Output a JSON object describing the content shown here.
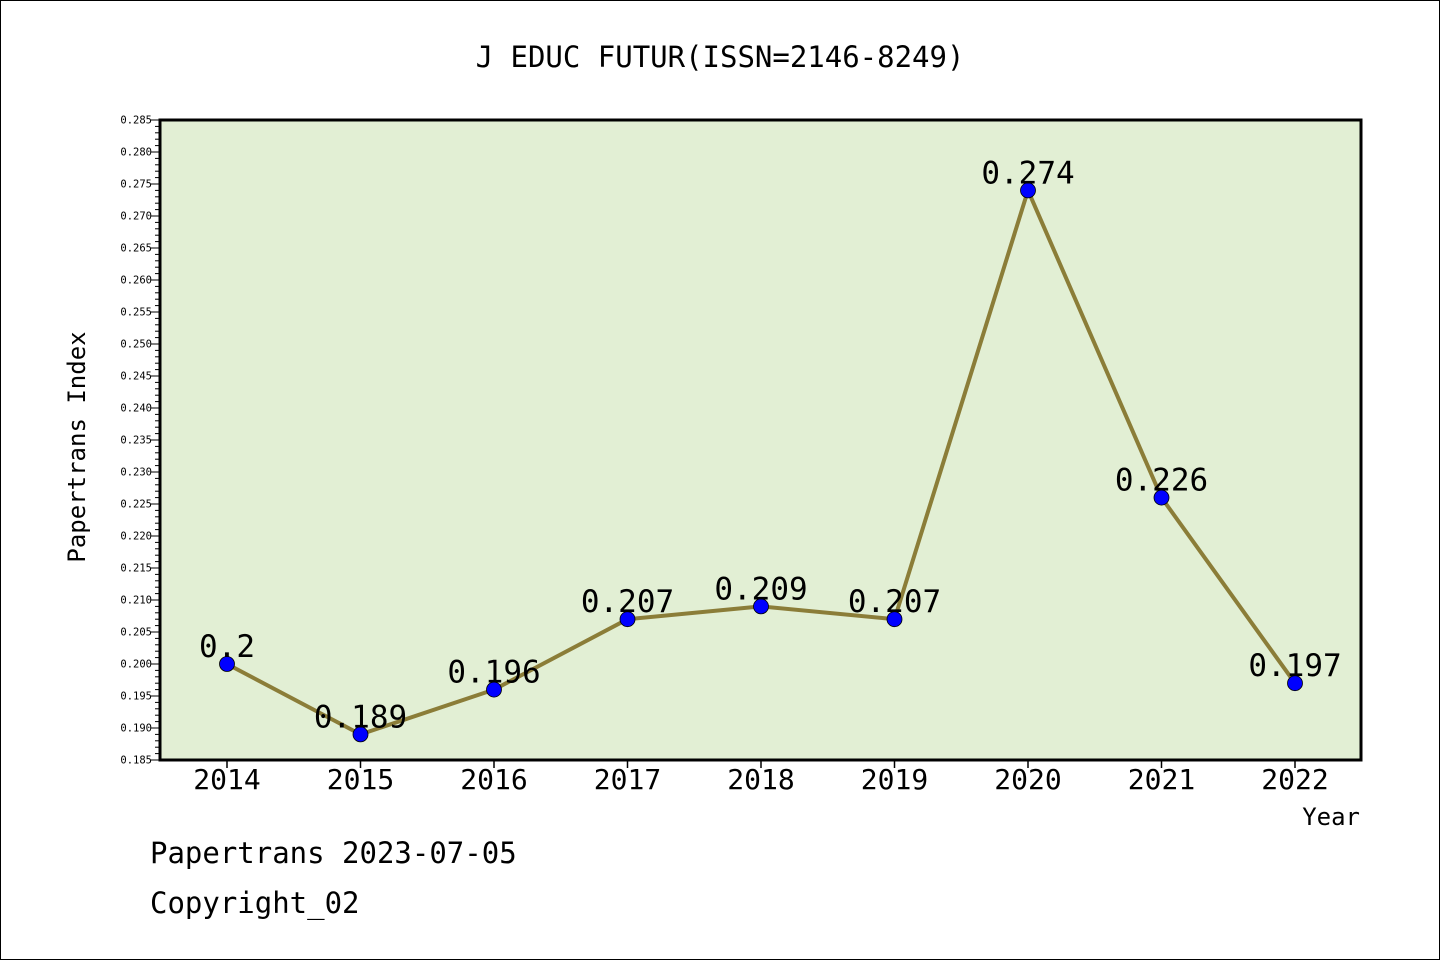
{
  "chart_data": {
    "type": "line",
    "title": "J EDUC FUTUR(ISSN=2146-8249)",
    "xlabel": "Year",
    "ylabel": "Papertrans Index",
    "categories": [
      "2014",
      "2015",
      "2016",
      "2017",
      "2018",
      "2019",
      "2020",
      "2021",
      "2022"
    ],
    "values": [
      0.2,
      0.189,
      0.196,
      0.207,
      0.209,
      0.207,
      0.274,
      0.226,
      0.197
    ],
    "data_labels": [
      "0.2",
      "0.189",
      "0.196",
      "0.207",
      "0.209",
      "0.207",
      "0.274",
      "0.226",
      "0.197"
    ],
    "ylim": [
      0.185,
      0.285
    ],
    "yticks": [
      "0.185",
      "0.190",
      "0.195",
      "0.200",
      "0.205",
      "0.210",
      "0.215",
      "0.220",
      "0.225",
      "0.230",
      "0.235",
      "0.240",
      "0.245",
      "0.250",
      "0.255",
      "0.260",
      "0.265",
      "0.270",
      "0.275",
      "0.280",
      "0.285"
    ],
    "grid": false,
    "colors": {
      "plot_background": "#e2efd4",
      "line": "#8b7d38",
      "marker": "#0000ff"
    }
  },
  "footer": {
    "line1": "Papertrans 2023-07-05",
    "line2": "Copyright_02"
  }
}
